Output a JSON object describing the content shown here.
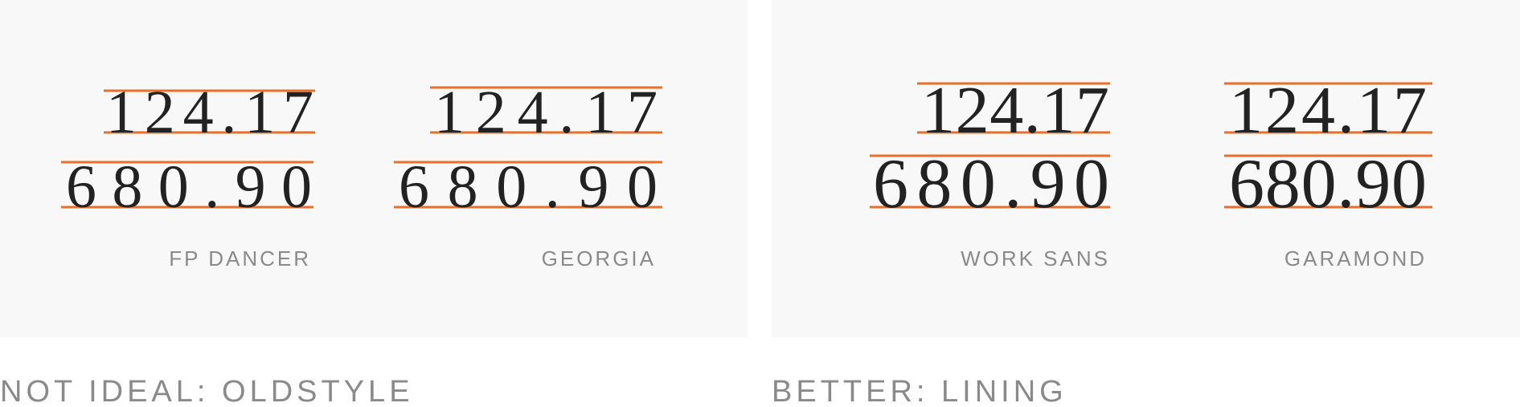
{
  "accent_color": "#e8702a",
  "panels": [
    {
      "title": "NOT IDEAL: OLDSTYLE",
      "samples": [
        {
          "font_label": "FP DANCER",
          "top_number": "124.17",
          "bottom_number": "680.90"
        },
        {
          "font_label": "GEORGIA",
          "top_number": "124.17",
          "bottom_number": "680.90"
        }
      ]
    },
    {
      "title": "BETTER: LINING",
      "samples": [
        {
          "font_label": "WORK SANS",
          "top_number": "124.17",
          "bottom_number": "680.90"
        },
        {
          "font_label": "GARAMOND",
          "top_number": "124.17",
          "bottom_number": "680.90"
        }
      ]
    }
  ]
}
